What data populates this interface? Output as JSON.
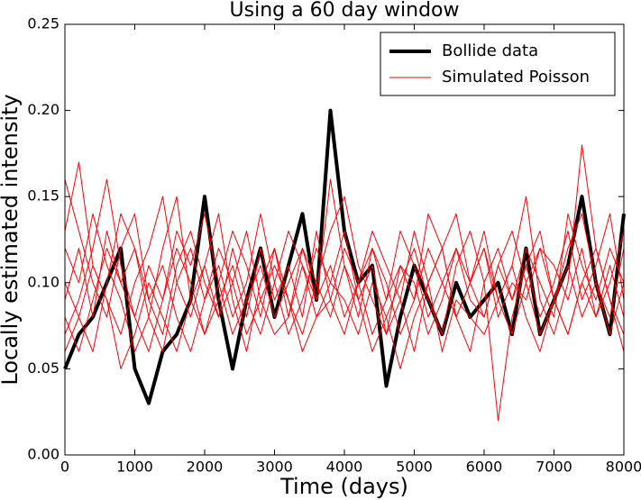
{
  "chart_data": {
    "type": "line",
    "title": "Using a 60 day window",
    "xlabel": "Time (days)",
    "ylabel": "Locally estimated intensity",
    "x": [
      0,
      200,
      400,
      600,
      800,
      1000,
      1200,
      1400,
      1600,
      1800,
      2000,
      2200,
      2400,
      2600,
      2800,
      3000,
      3200,
      3400,
      3600,
      3800,
      4000,
      4200,
      4400,
      4600,
      4800,
      5000,
      5200,
      5400,
      5600,
      5800,
      6000,
      6200,
      6400,
      6600,
      6800,
      7000,
      7200,
      7400,
      7600,
      7800,
      8000
    ],
    "series": [
      {
        "name": "Bollide data",
        "color": "#000000",
        "width": 4,
        "values": [
          0.05,
          0.07,
          0.08,
          0.1,
          0.12,
          0.05,
          0.03,
          0.06,
          0.07,
          0.09,
          0.15,
          0.09,
          0.05,
          0.09,
          0.12,
          0.08,
          0.11,
          0.14,
          0.09,
          0.2,
          0.13,
          0.1,
          0.11,
          0.04,
          0.08,
          0.11,
          0.09,
          0.07,
          0.1,
          0.08,
          0.09,
          0.1,
          0.07,
          0.12,
          0.07,
          0.09,
          0.11,
          0.15,
          0.1,
          0.07,
          0.14
        ]
      },
      {
        "name": "Simulated Poisson",
        "color": "#ff0000",
        "width": 1,
        "values": [
          0.16,
          0.13,
          0.1,
          0.08,
          0.12,
          0.14,
          0.09,
          0.07,
          0.11,
          0.13,
          0.1,
          0.08,
          0.12,
          0.09,
          0.07,
          0.1,
          0.13,
          0.11,
          0.08,
          0.09,
          0.12,
          0.1,
          0.07,
          0.09,
          0.13,
          0.11,
          0.08,
          0.1,
          0.12,
          0.09,
          0.08,
          0.11,
          0.13,
          0.1,
          0.07,
          0.09,
          0.12,
          0.14,
          0.1,
          0.08,
          0.12
        ]
      },
      {
        "color": "#ff0000",
        "width": 1,
        "values": [
          0.13,
          0.17,
          0.11,
          0.09,
          0.07,
          0.1,
          0.12,
          0.15,
          0.1,
          0.08,
          0.11,
          0.14,
          0.09,
          0.06,
          0.1,
          0.12,
          0.08,
          0.11,
          0.09,
          0.16,
          0.11,
          0.08,
          0.12,
          0.1,
          0.07,
          0.09,
          0.14,
          0.12,
          0.08,
          0.1,
          0.13,
          0.09,
          0.11,
          0.15,
          0.09,
          0.07,
          0.1,
          0.18,
          0.12,
          0.09,
          0.07
        ]
      },
      {
        "color": "#ff0000",
        "width": 1,
        "values": [
          0.07,
          0.09,
          0.12,
          0.16,
          0.11,
          0.08,
          0.06,
          0.09,
          0.13,
          0.11,
          0.14,
          0.1,
          0.07,
          0.09,
          0.11,
          0.08,
          0.1,
          0.12,
          0.09,
          0.11,
          0.08,
          0.1,
          0.13,
          0.11,
          0.09,
          0.06,
          0.1,
          0.12,
          0.14,
          0.1,
          0.08,
          0.11,
          0.09,
          0.12,
          0.1,
          0.08,
          0.14,
          0.11,
          0.09,
          0.12,
          0.1
        ]
      },
      {
        "color": "#ff0000",
        "width": 1,
        "values": [
          0.1,
          0.08,
          0.06,
          0.1,
          0.14,
          0.12,
          0.09,
          0.11,
          0.08,
          0.06,
          0.09,
          0.12,
          0.1,
          0.13,
          0.09,
          0.07,
          0.08,
          0.12,
          0.1,
          0.08,
          0.11,
          0.09,
          0.06,
          0.08,
          0.1,
          0.12,
          0.09,
          0.07,
          0.11,
          0.13,
          0.1,
          0.02,
          0.08,
          0.11,
          0.13,
          0.09,
          0.07,
          0.1,
          0.12,
          0.09,
          0.06
        ]
      },
      {
        "color": "#ff0000",
        "width": 1,
        "values": [
          0.12,
          0.1,
          0.14,
          0.11,
          0.09,
          0.06,
          0.08,
          0.12,
          0.15,
          0.09,
          0.07,
          0.1,
          0.13,
          0.11,
          0.08,
          0.12,
          0.09,
          0.07,
          0.1,
          0.13,
          0.15,
          0.11,
          0.09,
          0.07,
          0.11,
          0.09,
          0.12,
          0.1,
          0.08,
          0.06,
          0.1,
          0.12,
          0.09,
          0.11,
          0.08,
          0.1,
          0.13,
          0.09,
          0.11,
          0.14,
          0.09
        ]
      },
      {
        "color": "#ff0000",
        "width": 1,
        "values": [
          0.06,
          0.08,
          0.11,
          0.09,
          0.05,
          0.07,
          0.1,
          0.08,
          0.06,
          0.09,
          0.11,
          0.08,
          0.1,
          0.07,
          0.09,
          0.11,
          0.09,
          0.06,
          0.08,
          0.1,
          0.09,
          0.07,
          0.1,
          0.08,
          0.05,
          0.08,
          0.1,
          0.06,
          0.09,
          0.08,
          0.07,
          0.09,
          0.11,
          0.08,
          0.06,
          0.09,
          0.07,
          0.1,
          0.08,
          0.11,
          0.08
        ]
      },
      {
        "color": "#ff0000",
        "width": 1,
        "values": [
          0.09,
          0.12,
          0.08,
          0.13,
          0.1,
          0.12,
          0.08,
          0.06,
          0.1,
          0.12,
          0.09,
          0.11,
          0.08,
          0.1,
          0.14,
          0.1,
          0.07,
          0.09,
          0.12,
          0.1,
          0.13,
          0.09,
          0.11,
          0.07,
          0.09,
          0.13,
          0.1,
          0.12,
          0.08,
          0.1,
          0.12,
          0.08,
          0.1,
          0.09,
          0.12,
          0.11,
          0.09,
          0.12,
          0.08,
          0.1,
          0.13
        ]
      },
      {
        "color": "#ff0000",
        "width": 1,
        "values": [
          0.08,
          0.06,
          0.09,
          0.12,
          0.1,
          0.08,
          0.11,
          0.09,
          0.12,
          0.1,
          0.07,
          0.09,
          0.11,
          0.08,
          0.12,
          0.09,
          0.11,
          0.08,
          0.13,
          0.09,
          0.07,
          0.1,
          0.12,
          0.09,
          0.11,
          0.1,
          0.07,
          0.09,
          0.12,
          0.1,
          0.12,
          0.09,
          0.07,
          0.1,
          0.12,
          0.09,
          0.11,
          0.08,
          0.1,
          0.07,
          0.1
        ]
      }
    ],
    "xlim": [
      0,
      8000
    ],
    "xticks": [
      0,
      1000,
      2000,
      3000,
      4000,
      5000,
      6000,
      7000,
      8000
    ],
    "ylim": [
      0,
      0.25
    ],
    "yticks": [
      {
        "value": 0,
        "label": "0.00"
      },
      {
        "value": 0.05,
        "label": "0.05"
      },
      {
        "value": 0.1,
        "label": "0.10"
      },
      {
        "value": 0.15,
        "label": "0.15"
      },
      {
        "value": 0.2,
        "label": "0.20"
      },
      {
        "value": 0.25,
        "label": "0.25"
      }
    ],
    "legend": "upper right",
    "grid": false
  }
}
